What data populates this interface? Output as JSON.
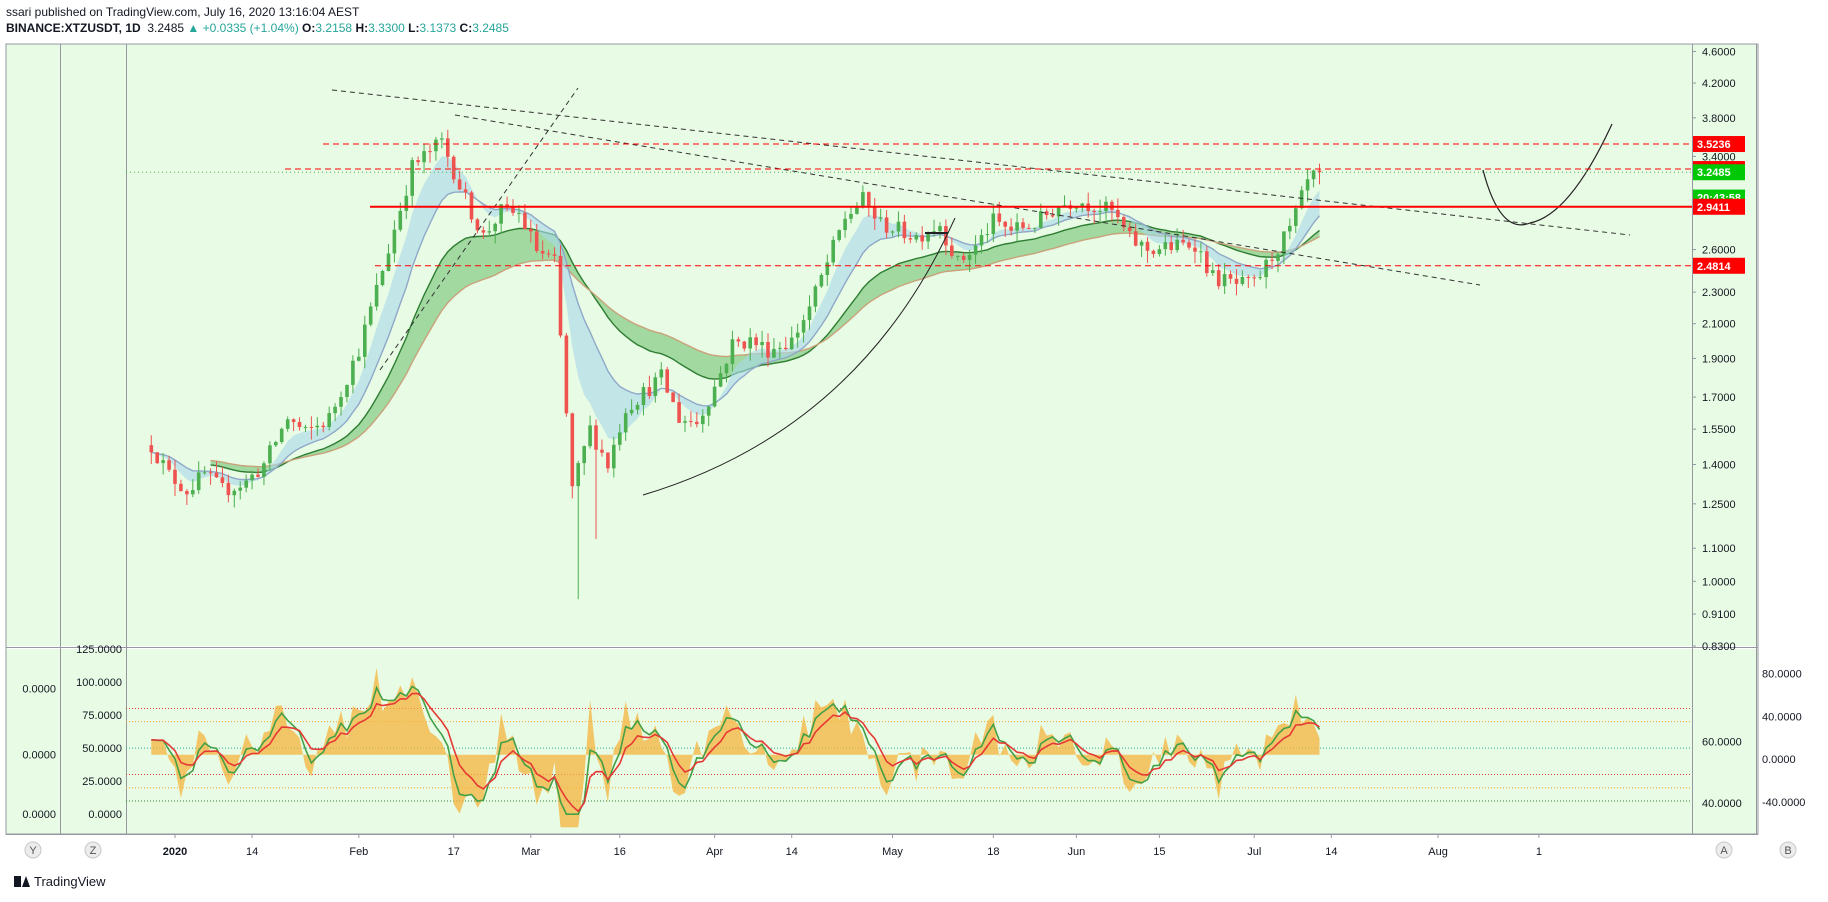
{
  "header": {
    "published": "ssari published on TradingView.com, July 16, 2020 13:16:04 AEST",
    "symbol": "BINANCE:XTZUSDT, 1D",
    "last": "3.2485",
    "change": "+0.0335 (+1.04%)",
    "open_label": "O:",
    "open": "3.2158",
    "high_label": "H:",
    "high": "3.3300",
    "low_label": "L:",
    "low": "3.1373",
    "close_label": "C:",
    "close": "3.2485"
  },
  "brand": "TradingView",
  "colors": {
    "background": "#e8fbe4",
    "up": "#4caf50",
    "down": "#ef5350",
    "level_red": "#ff0000",
    "price_green": "#00c805",
    "band_blue": "#a8d8ea",
    "band_green": "#4caf50",
    "osc_fill": "#f5b43c"
  },
  "bottom_buttons": [
    "Y",
    "Z",
    "A",
    "B"
  ],
  "chart_data": [
    {
      "type": "candlestick",
      "symbol": "BINANCE:XTZUSDT",
      "interval": "1D",
      "scale": "log",
      "ylim": [
        0.83,
        4.7
      ],
      "y_ticks": [
        4.6,
        4.2,
        3.8,
        3.4,
        3.0,
        2.6,
        2.3,
        2.1,
        1.9,
        1.7,
        1.55,
        1.4,
        1.25,
        1.1,
        1.0,
        0.91,
        0.83
      ],
      "y_tick_labels": [
        "4.6000",
        "4.2000",
        "3.8000",
        "3.4000",
        "3.0000",
        "2.6000",
        "2.3000",
        "2.1000",
        "1.9000",
        "1.7000",
        "1.5500",
        "1.4000",
        "1.2500",
        "1.1000",
        "1.0000",
        "0.9100",
        "0.8300"
      ],
      "x_ticks": [
        {
          "label": "2020",
          "day": 0,
          "bold": true
        },
        {
          "label": "14",
          "day": 13
        },
        {
          "label": "Feb",
          "day": 31
        },
        {
          "label": "17",
          "day": 47
        },
        {
          "label": "Mar",
          "day": 60
        },
        {
          "label": "16",
          "day": 75
        },
        {
          "label": "Apr",
          "day": 91
        },
        {
          "label": "14",
          "day": 104
        },
        {
          "label": "May",
          "day": 121
        },
        {
          "label": "18",
          "day": 138
        },
        {
          "label": "Jun",
          "day": 152
        },
        {
          "label": "15",
          "day": 166
        },
        {
          "label": "Jul",
          "day": 182
        },
        {
          "label": "14",
          "day": 195
        },
        {
          "label": "Aug",
          "day": 213
        },
        {
          "label": "1",
          "day": 230
        }
      ],
      "close_anchors": [
        [
          -4,
          1.48
        ],
        [
          -1,
          1.36
        ],
        [
          2,
          1.3
        ],
        [
          5,
          1.36
        ],
        [
          8,
          1.3
        ],
        [
          12,
          1.33
        ],
        [
          15,
          1.4
        ],
        [
          19,
          1.6
        ],
        [
          22,
          1.53
        ],
        [
          26,
          1.6
        ],
        [
          31,
          1.95
        ],
        [
          36,
          2.6
        ],
        [
          40,
          3.3
        ],
        [
          45,
          3.55
        ],
        [
          49,
          3.0
        ],
        [
          52,
          2.7
        ],
        [
          55,
          2.9
        ],
        [
          58,
          2.88
        ],
        [
          61,
          2.6
        ],
        [
          64,
          2.5
        ],
        [
          67,
          1.3
        ],
        [
          70,
          1.55
        ],
        [
          73,
          1.4
        ],
        [
          76,
          1.65
        ],
        [
          79,
          1.72
        ],
        [
          82,
          1.8
        ],
        [
          85,
          1.6
        ],
        [
          88,
          1.58
        ],
        [
          91,
          1.75
        ],
        [
          94,
          1.98
        ],
        [
          97,
          2.0
        ],
        [
          100,
          1.95
        ],
        [
          104,
          2.0
        ],
        [
          107,
          2.2
        ],
        [
          110,
          2.5
        ],
        [
          113,
          2.85
        ],
        [
          116,
          3.0
        ],
        [
          119,
          2.8
        ],
        [
          122,
          2.75
        ],
        [
          125,
          2.7
        ],
        [
          129,
          2.8
        ],
        [
          132,
          2.5
        ],
        [
          135,
          2.62
        ],
        [
          138,
          2.82
        ],
        [
          141,
          2.75
        ],
        [
          145,
          2.8
        ],
        [
          149,
          2.95
        ],
        [
          152,
          3.0
        ],
        [
          155,
          2.95
        ],
        [
          158,
          2.9
        ],
        [
          161,
          2.68
        ],
        [
          164,
          2.6
        ],
        [
          168,
          2.62
        ],
        [
          172,
          2.65
        ],
        [
          175,
          2.4
        ],
        [
          179,
          2.35
        ],
        [
          182,
          2.35
        ],
        [
          185,
          2.55
        ],
        [
          188,
          2.75
        ],
        [
          191,
          3.15
        ],
        [
          193,
          3.2485
        ]
      ],
      "annotations": {
        "horizontal_lines": [
          {
            "price": 3.5236,
            "style": "dashed",
            "color": "#ff0000"
          },
          {
            "price": 3.2785,
            "style": "dashed",
            "color": "#ff0000"
          },
          {
            "price": 2.9411,
            "style": "solid",
            "color": "#ff0000"
          },
          {
            "price": 2.4814,
            "style": "dashed",
            "color": "#ff0000"
          }
        ],
        "price_tags": [
          {
            "label": "3.5236",
            "price": 3.5236,
            "color": "#ff0000"
          },
          {
            "label": "3.2785",
            "price": 3.2785,
            "color": "#ff0000"
          },
          {
            "label": "3.2485",
            "price": 3.2485,
            "color": "#00c805"
          },
          {
            "label": "20:43:58",
            "price": 3.02,
            "color": "#00c805"
          },
          {
            "label": "2.9411",
            "price": 2.9411,
            "color": "#ff0000"
          },
          {
            "label": "2.4814",
            "price": 2.4814,
            "color": "#ff0000"
          }
        ]
      }
    },
    {
      "type": "oscillator",
      "left_ylim": [
        -15,
        125
      ],
      "left_ticks": [
        125,
        100,
        75,
        50,
        25,
        0
      ],
      "left_tick_labels": [
        "125.0000",
        "100.0000",
        "75.0000",
        "50.0000",
        "25.0000",
        "0.0000"
      ],
      "left_outer_ticks": [
        95,
        45,
        0
      ],
      "left_outer_labels": [
        "0.0000",
        "0.0000",
        "0.0000"
      ],
      "right_ylim": [
        -70,
        103
      ],
      "right_ticks": [
        80,
        40,
        0,
        -40
      ],
      "right_tick_labels": [
        "80.0000",
        "40.0000",
        "0.0000",
        "-40.0000"
      ],
      "right_ticks_mid": [
        60,
        40
      ],
      "right_mid_labels": [
        "60.0000",
        "40.0000"
      ],
      "levels": [
        80,
        70,
        50,
        30,
        20,
        10
      ]
    }
  ]
}
